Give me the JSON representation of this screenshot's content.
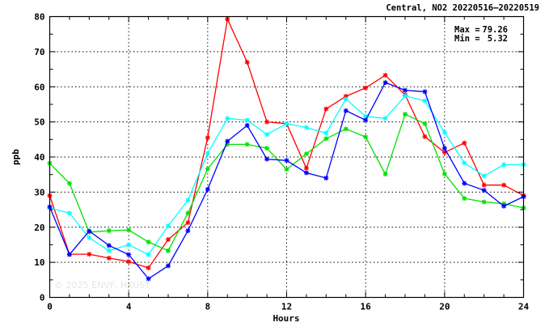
{
  "chart_data": {
    "type": "line",
    "title": "Central, NO2 20220516–20220519",
    "xlabel": "Hours",
    "ylabel": "ppb",
    "xlim": [
      0,
      24
    ],
    "ylim": [
      0,
      80
    ],
    "xticks": [
      0,
      4,
      8,
      12,
      16,
      20,
      24
    ],
    "yticks": [
      0,
      10,
      20,
      30,
      40,
      50,
      60,
      70,
      80
    ],
    "grid": true,
    "stats": {
      "max_label": "Max =",
      "max_value": "79.26",
      "min_label": "Min =",
      "min_value": "5.32"
    },
    "watermark": "© 2025  ENVF, HKUST",
    "x": [
      0,
      1,
      2,
      3,
      4,
      5,
      6,
      7,
      8,
      9,
      10,
      11,
      12,
      13,
      14,
      15,
      16,
      17,
      18,
      19,
      20,
      21,
      22,
      23,
      24
    ],
    "series": [
      {
        "color": "#ff0000",
        "values": [
          29.0,
          12.3,
          12.3,
          11.2,
          10.2,
          8.4,
          16.5,
          21.3,
          45.5,
          79.26,
          67.0,
          50.0,
          49.5,
          36.8,
          53.7,
          57.3,
          59.7,
          63.3,
          57.7,
          45.8,
          41.3,
          44.0,
          32.0,
          32.0,
          29.0
        ]
      },
      {
        "color": "#00ffff",
        "values": [
          25.5,
          24.0,
          17.0,
          13.3,
          15.0,
          12.2,
          20.4,
          27.7,
          41.0,
          51.0,
          50.5,
          46.4,
          49.5,
          48.4,
          46.8,
          56.5,
          51.6,
          51.0,
          57.4,
          56.0,
          47.0,
          38.3,
          34.6,
          37.8,
          37.8
        ]
      },
      {
        "color": "#00e000",
        "values": [
          38.2,
          32.5,
          18.6,
          19.0,
          19.2,
          15.8,
          13.3,
          24.0,
          36.6,
          43.6,
          43.6,
          42.5,
          36.5,
          40.9,
          45.2,
          48.0,
          45.7,
          35.1,
          52.2,
          49.5,
          35.2,
          28.2,
          27.2,
          26.7,
          25.5
        ]
      },
      {
        "color": "#0000ff",
        "values": [
          25.8,
          12.2,
          18.9,
          14.8,
          12.2,
          5.32,
          9.0,
          19.0,
          30.8,
          44.5,
          49.0,
          39.4,
          39.0,
          35.5,
          34.0,
          53.2,
          50.5,
          61.2,
          59.0,
          58.6,
          42.5,
          32.5,
          30.5,
          26.0,
          28.7
        ]
      }
    ]
  }
}
